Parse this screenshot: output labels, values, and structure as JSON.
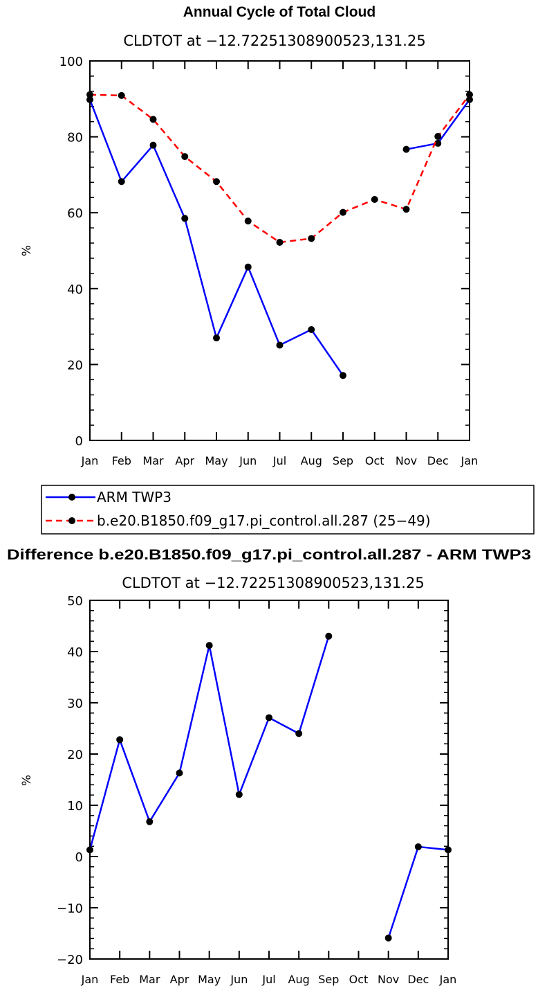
{
  "chart_data": [
    {
      "type": "line",
      "title": "Annual Cycle of Total Cloud",
      "subtitle": "CLDTOT at −12.72251308900523,131.25",
      "ylabel": "%",
      "ylim": [
        0,
        100
      ],
      "yticks": [
        0,
        20,
        40,
        60,
        80,
        100
      ],
      "categories": [
        "Jan",
        "Feb",
        "Mar",
        "Apr",
        "May",
        "Jun",
        "Jul",
        "Aug",
        "Sep",
        "Oct",
        "Nov",
        "Dec",
        "Jan"
      ],
      "series": [
        {
          "name": "ARM TWP3",
          "color": "#0000ff",
          "dash": "solid",
          "values": [
            89.8,
            68.2,
            77.8,
            58.5,
            27.0,
            45.7,
            25.1,
            29.2,
            17.1,
            null,
            76.7,
            78.3,
            89.8
          ]
        },
        {
          "name": "b.e20.B1850.f09_g17.pi_control.all.287 (25−49)",
          "color": "#ff0000",
          "dash": "dashed",
          "values": [
            91.1,
            90.9,
            84.6,
            74.8,
            68.2,
            57.8,
            52.2,
            53.2,
            60.1,
            63.5,
            60.9,
            80.1,
            91.1
          ]
        }
      ],
      "legend": "below"
    },
    {
      "type": "line",
      "title": "Difference b.e20.B1850.f09_g17.pi_control.all.287 - ARM TWP3",
      "subtitle": "CLDTOT at −12.72251308900523,131.25",
      "ylabel": "%",
      "ylim": [
        -20,
        50
      ],
      "yticks": [
        -20,
        -10,
        0,
        10,
        20,
        30,
        40,
        50
      ],
      "categories": [
        "Jan",
        "Feb",
        "Mar",
        "Apr",
        "May",
        "Jun",
        "Jul",
        "Aug",
        "Sep",
        "Oct",
        "Nov",
        "Dec",
        "Jan"
      ],
      "series": [
        {
          "color": "#0000ff",
          "dash": "solid",
          "values": [
            1.3,
            22.8,
            6.8,
            16.3,
            41.2,
            12.1,
            27.1,
            24.0,
            43.0,
            null,
            -15.9,
            1.9,
            1.3
          ]
        }
      ]
    }
  ]
}
